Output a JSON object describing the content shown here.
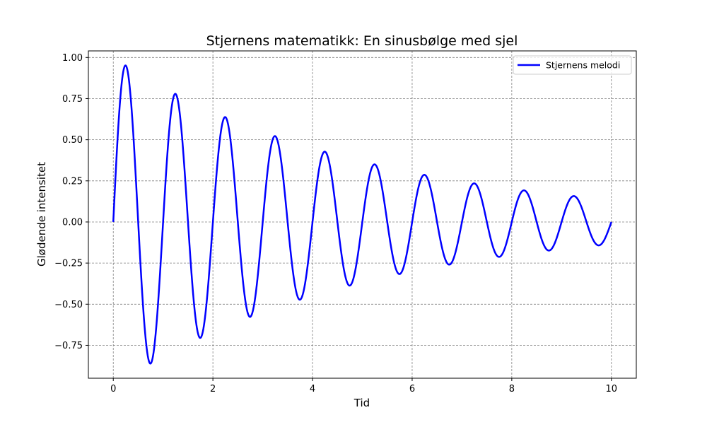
{
  "chart_data": {
    "type": "line",
    "title": "Stjernens matematikk: En sinusbølge med sjel",
    "xlabel": "Tid",
    "ylabel": "Glødende intensitet",
    "xlim": [
      -0.5,
      10.5
    ],
    "ylim": [
      -0.95,
      1.04
    ],
    "xticks": [
      0,
      2,
      4,
      6,
      8,
      10
    ],
    "xtick_labels": [
      "0",
      "2",
      "4",
      "6",
      "8",
      "10"
    ],
    "yticks": [
      -0.75,
      -0.5,
      -0.25,
      0.0,
      0.25,
      0.5,
      0.75,
      1.0
    ],
    "ytick_labels": [
      "−0.75",
      "−0.50",
      "−0.25",
      "0.00",
      "0.25",
      "0.50",
      "0.75",
      "1.00"
    ],
    "grid": true,
    "legend_position": "upper-right",
    "series": [
      {
        "name": "Stjernens melodi",
        "color": "#0000ff",
        "function": "sin(2*pi*t) * exp(-0.2*t)",
        "x_range": [
          0,
          10
        ],
        "sample_count": 1000,
        "peaks": [
          {
            "x": 0.25,
            "y": 0.95
          },
          {
            "x": 1.25,
            "y": 0.78
          },
          {
            "x": 2.25,
            "y": 0.64
          },
          {
            "x": 3.25,
            "y": 0.52
          },
          {
            "x": 4.25,
            "y": 0.43
          },
          {
            "x": 5.25,
            "y": 0.35
          },
          {
            "x": 6.25,
            "y": 0.29
          },
          {
            "x": 7.25,
            "y": 0.23
          },
          {
            "x": 8.25,
            "y": 0.19
          },
          {
            "x": 9.25,
            "y": 0.16
          }
        ],
        "troughs": [
          {
            "x": 0.75,
            "y": -0.86
          },
          {
            "x": 1.75,
            "y": -0.7
          },
          {
            "x": 2.75,
            "y": -0.58
          },
          {
            "x": 3.75,
            "y": -0.47
          },
          {
            "x": 4.75,
            "y": -0.39
          },
          {
            "x": 5.75,
            "y": -0.32
          },
          {
            "x": 6.75,
            "y": -0.26
          },
          {
            "x": 7.75,
            "y": -0.21
          },
          {
            "x": 8.75,
            "y": -0.17
          },
          {
            "x": 9.75,
            "y": -0.14
          }
        ]
      }
    ]
  }
}
